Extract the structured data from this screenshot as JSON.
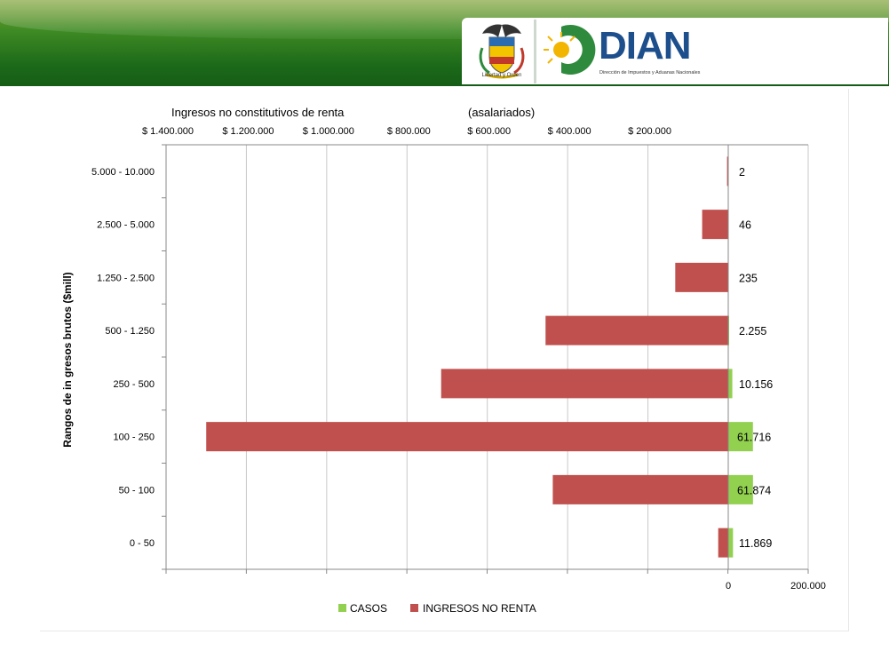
{
  "header": {
    "crest_caption": "Libertad y Orden",
    "brand": "DIAN",
    "brand_subtitle": "Dirección de Impuestos y Aduanas Nacionales"
  },
  "colors": {
    "ingresos": "#c0504d",
    "casos": "#92d050",
    "grid": "#c8c8c8",
    "banner_green": "#2e7d23",
    "brand_blue": "#1d4f8c"
  },
  "chart_data": {
    "type": "bar",
    "orientation": "horizontal",
    "title_left": "Ingresos no constitutivos de renta",
    "title_right": "(asalariados)",
    "ylabel": "Rangos de in gresos brutos  ($mill)",
    "categories": [
      "5.000 - 10.000",
      "2.500 - 5.000",
      "1.250 - 2.500",
      "500 - 1.250",
      "250 - 500",
      "100 - 250",
      "50 - 100",
      "0 - 50"
    ],
    "top_axis": {
      "ticks": [
        1400000,
        1200000,
        1000000,
        800000,
        600000,
        400000,
        200000
      ],
      "tick_labels": [
        "$ 1.400.000",
        "$ 1.200.000",
        "$ 1.000.000",
        "$ 800.000",
        "$ 600.000",
        "$ 400.000",
        "$ 200.000"
      ],
      "range_reversed": [
        0,
        1400000
      ]
    },
    "bottom_axis": {
      "ticks": [
        0,
        200000
      ],
      "tick_labels": [
        "0",
        "200.000"
      ],
      "range": [
        0,
        200000
      ]
    },
    "series": [
      {
        "name": "CASOS",
        "axis": "bottom",
        "values": [
          2,
          46,
          235,
          2255,
          10156,
          61716,
          61874,
          11869
        ],
        "labels": [
          "2",
          "46",
          "235",
          "2.255",
          "10.156",
          "61.716",
          "61.874",
          "11.869"
        ]
      },
      {
        "name": "INGRESOS NO RENTA",
        "axis": "top",
        "values": [
          3000,
          65000,
          132000,
          455000,
          715000,
          1300000,
          437000,
          25000
        ]
      }
    ],
    "legend": [
      "CASOS",
      "INGRESOS NO RENTA"
    ],
    "legend_position": "bottom",
    "grid": true
  }
}
